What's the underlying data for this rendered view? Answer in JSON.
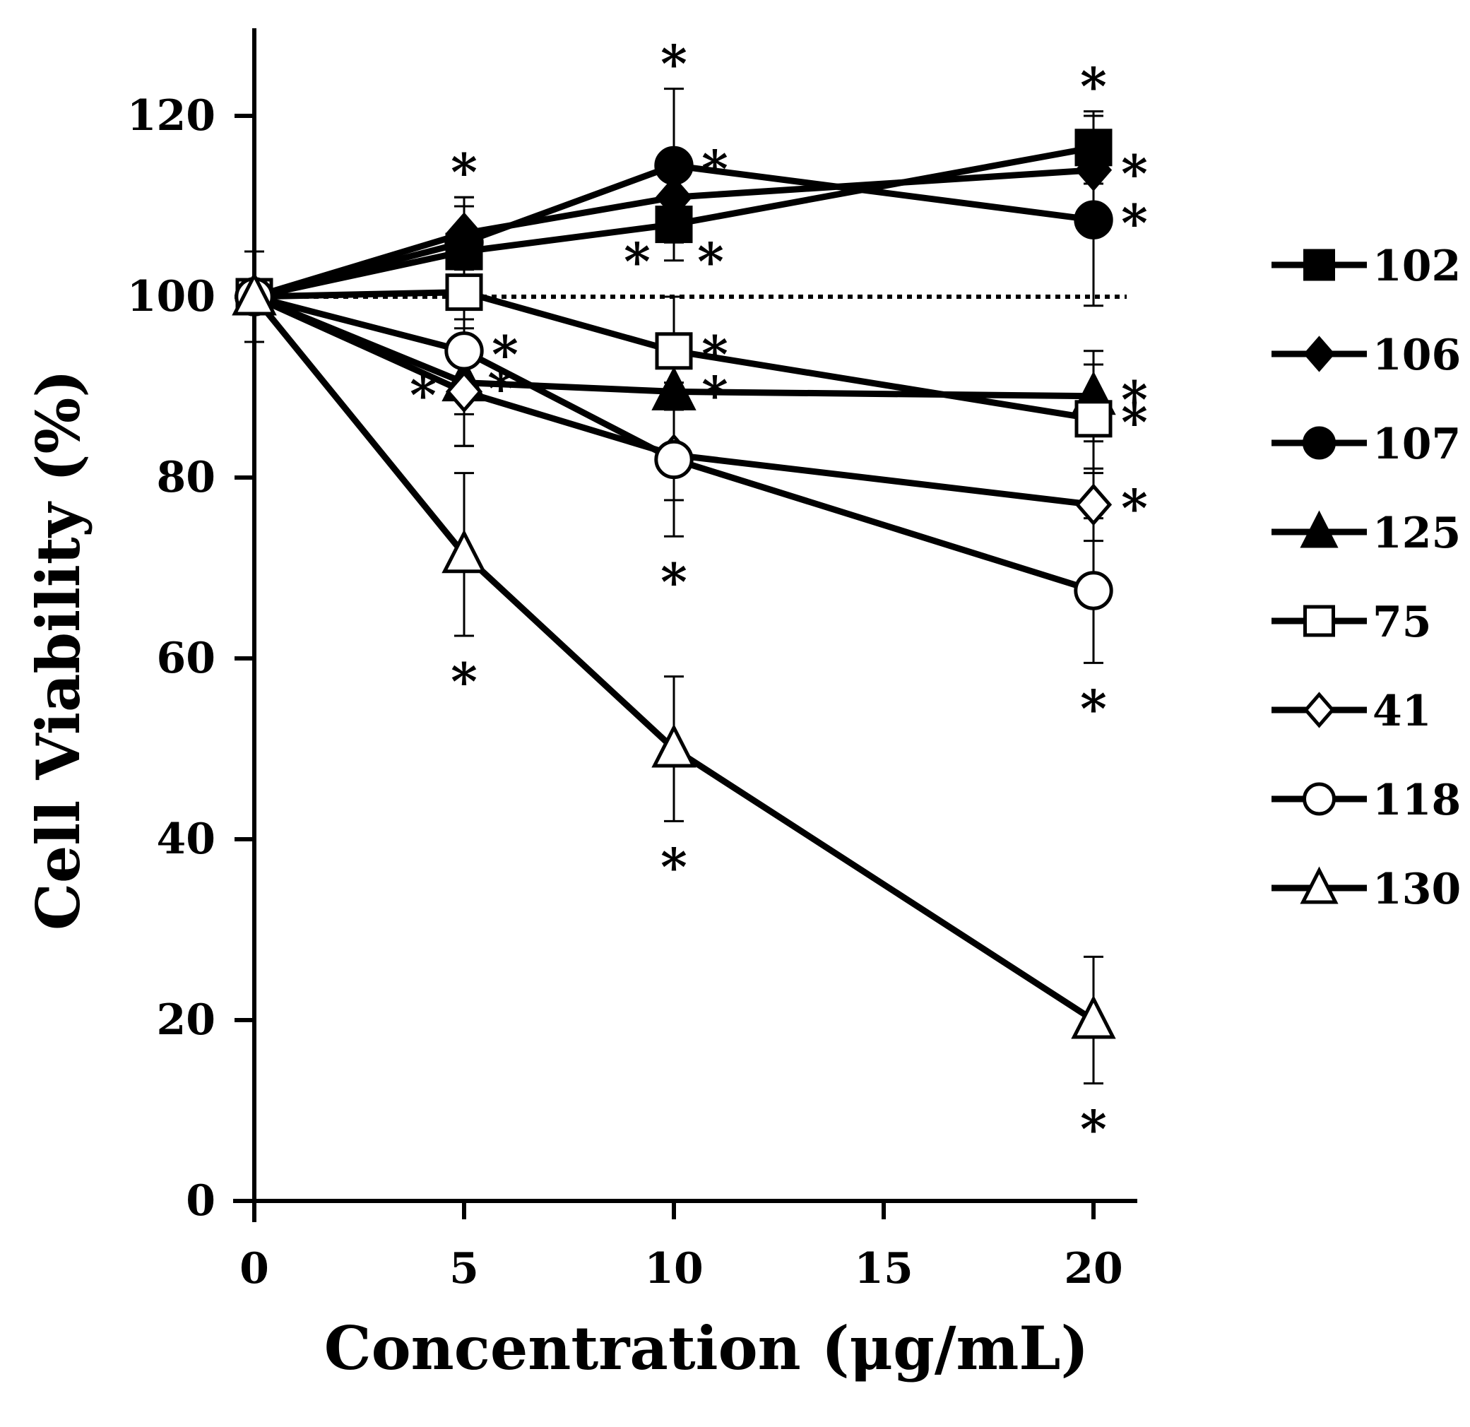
{
  "chart_data": {
    "type": "line",
    "title": "",
    "xlabel": "Concentration (μg/mL)",
    "ylabel": "Cell Viability (%)",
    "xlim": [
      0,
      21
    ],
    "ylim": [
      0,
      130
    ],
    "xticks": [
      0,
      5,
      10,
      15,
      20
    ],
    "yticks": [
      0,
      20,
      40,
      60,
      80,
      100,
      120
    ],
    "xtick_labels": [
      "0",
      "5",
      "10",
      "15",
      "20"
    ],
    "ytick_labels": [
      "0",
      "20",
      "40",
      "60",
      "80",
      "100",
      "120"
    ],
    "x": [
      0,
      5,
      10,
      20
    ],
    "reference_line": {
      "y": 100,
      "style": "dotted"
    },
    "grid": false,
    "legend_position": "right",
    "significance_marker": "*",
    "series": [
      {
        "name": "102",
        "marker": "square",
        "fill": "filled",
        "values": [
          100,
          105,
          108,
          116.5
        ],
        "errors": [
          5,
          5,
          4,
          4
        ],
        "stars": [
          {
            "x": 10,
            "dir": "bottom-left"
          },
          {
            "x": 10,
            "dir": "bottom-right"
          },
          {
            "x": 20,
            "dir": "top"
          }
        ]
      },
      {
        "name": "106",
        "marker": "diamond",
        "fill": "filled",
        "values": [
          100,
          107,
          111,
          114
        ],
        "errors": [
          5,
          4,
          4,
          6
        ],
        "stars": [
          {
            "x": 5,
            "dir": "top"
          },
          {
            "x": 20,
            "dir": "right"
          }
        ]
      },
      {
        "name": "107",
        "marker": "circle",
        "fill": "filled",
        "values": [
          100,
          106,
          114.5,
          108.5
        ],
        "errors": [
          5,
          5,
          8.5,
          9.5
        ],
        "stars": [
          {
            "x": 10,
            "dir": "top"
          },
          {
            "x": 10,
            "dir": "right"
          },
          {
            "x": 20,
            "dir": "right"
          }
        ]
      },
      {
        "name": "125",
        "marker": "triangle",
        "fill": "filled",
        "values": [
          100,
          90.5,
          89.5,
          89
        ],
        "errors": [
          5,
          7,
          6,
          5
        ],
        "stars": [
          {
            "x": 10,
            "dir": "right"
          },
          {
            "x": 20,
            "dir": "right"
          }
        ]
      },
      {
        "name": "75",
        "marker": "square",
        "fill": "open",
        "values": [
          100,
          100.5,
          94,
          86.5
        ],
        "errors": [
          5,
          4,
          6,
          6
        ],
        "stars": [
          {
            "x": 10,
            "dir": "right"
          },
          {
            "x": 20,
            "dir": "right"
          }
        ]
      },
      {
        "name": "41",
        "marker": "diamond",
        "fill": "open",
        "values": [
          100,
          89.5,
          82.5,
          77
        ],
        "errors": [
          5,
          6,
          5,
          4
        ],
        "stars": [
          {
            "x": 5,
            "dir": "left"
          },
          {
            "x": 20,
            "dir": "right"
          }
        ]
      },
      {
        "name": "118",
        "marker": "circle",
        "fill": "open",
        "values": [
          100,
          94,
          82,
          67.5
        ],
        "errors": [
          5,
          7,
          8.5,
          8
        ],
        "stars": [
          {
            "x": 5,
            "dir": "right"
          },
          {
            "x": 5,
            "dir": "bottom-right"
          },
          {
            "x": 10,
            "dir": "bottom"
          },
          {
            "x": 20,
            "dir": "bottom"
          }
        ]
      },
      {
        "name": "130",
        "marker": "triangle",
        "fill": "open",
        "values": [
          100,
          71.5,
          50,
          20
        ],
        "errors": [
          5,
          9,
          8,
          7
        ],
        "stars": [
          {
            "x": 5,
            "dir": "bottom"
          },
          {
            "x": 10,
            "dir": "bottom"
          },
          {
            "x": 20,
            "dir": "bottom"
          }
        ]
      }
    ]
  }
}
